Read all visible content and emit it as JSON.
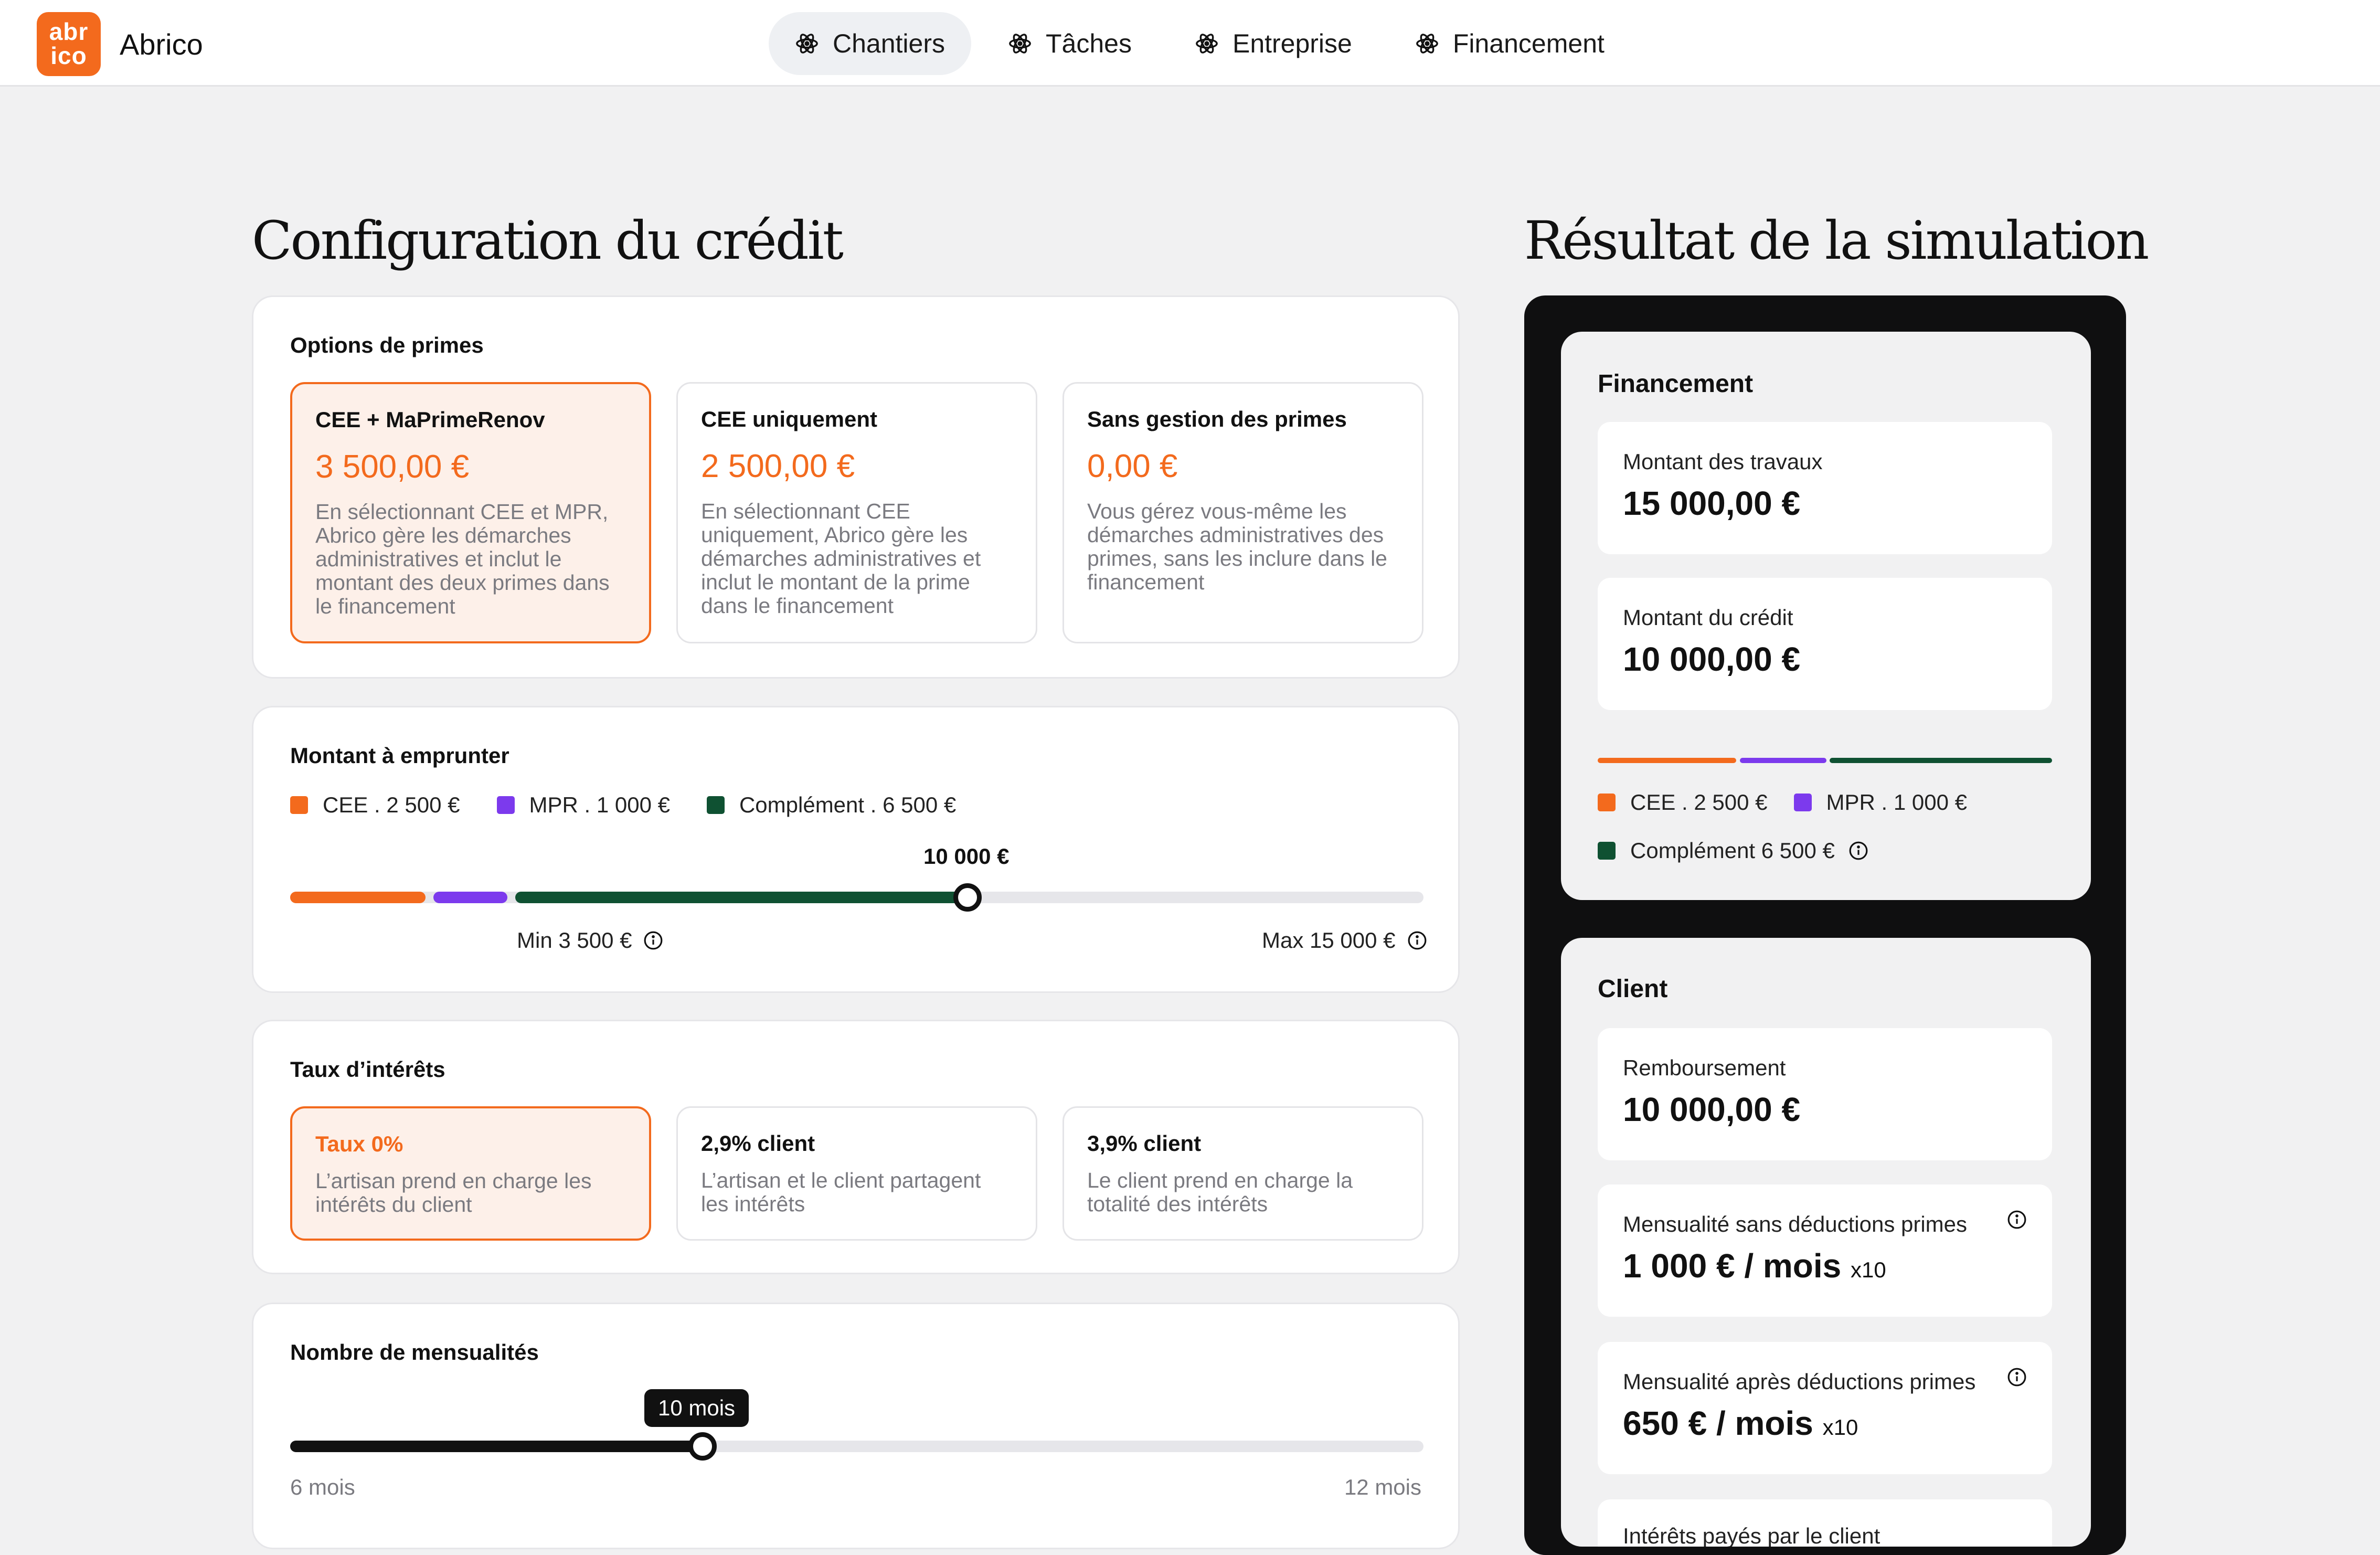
{
  "nav": {
    "logo_top": "abr",
    "logo_bottom": "ico",
    "app_name": "Abrico",
    "items": [
      {
        "label": "Chantiers",
        "icon": "atom-icon",
        "active": true
      },
      {
        "label": "Tâches",
        "icon": "atom-icon",
        "active": false
      },
      {
        "label": "Entreprise",
        "icon": "atom-icon",
        "active": false
      },
      {
        "label": "Financement",
        "icon": "atom-icon",
        "active": false
      }
    ]
  },
  "config": {
    "heading": "Configuration du crédit",
    "primes": {
      "title": "Options de primes",
      "options": [
        {
          "title": "CEE + MaPrimeRenov",
          "amount": "3 500,00 €",
          "desc": "En sélectionnant CEE et MPR, Abrico gère les démarches administratives et inclut le montant des deux primes dans le financement",
          "selected": true
        },
        {
          "title": "CEE uniquement",
          "amount": "2 500,00 €",
          "desc": "En sélectionnant CEE uniquement, Abrico gère les démarches administratives et inclut le montant de la prime dans le financement",
          "selected": false
        },
        {
          "title": "Sans gestion des primes",
          "amount": "0,00 €",
          "desc": "Vous gérez vous-même les démarches administratives des primes, sans les inclure dans le financement",
          "selected": false
        }
      ]
    },
    "montant": {
      "title": "Montant à emprunter",
      "legend": [
        {
          "label": "CEE . 2 500 €",
          "color": "#f36a1d"
        },
        {
          "label": "MPR . 1 000 €",
          "color": "#7c3aed"
        },
        {
          "label": "Complément . 6 500 €",
          "color": "#0f5132"
        }
      ],
      "value_label": "10 000 €",
      "value_fraction": 0.5844,
      "min_label": "Min 3 500 €",
      "max_label": "Max 15 000 €"
    },
    "taux": {
      "title": "Taux d’intérêts",
      "options": [
        {
          "title": "Taux 0%",
          "desc": "L’artisan prend en charge les intérêts du client",
          "selected": true
        },
        {
          "title": "2,9% client",
          "desc": "L’artisan et le client partagent les intérêts",
          "selected": false
        },
        {
          "title": "3,9% client",
          "desc": "Le client prend en charge la totalité des intérêts",
          "selected": false
        }
      ]
    },
    "mensualites": {
      "title": "Nombre de mensualités",
      "value_label": "10 mois",
      "value_fraction": 0.3617,
      "min_label": "6 mois",
      "max_label": "12 mois"
    }
  },
  "result": {
    "heading": "Résultat de la simulation",
    "financement": {
      "title": "Financement",
      "travaux_label": "Montant des travaux",
      "travaux_value": "15 000,00 €",
      "credit_label": "Montant du crédit",
      "credit_value": "10 000,00 €",
      "legend": [
        {
          "label": "CEE . 2 500 €",
          "color": "#f36a1d"
        },
        {
          "label": "MPR . 1 000 €",
          "color": "#7c3aed"
        },
        {
          "label": "Complément  6 500 €",
          "color": "#0f5132"
        }
      ]
    },
    "client": {
      "title": "Client",
      "remboursement_label": "Remboursement",
      "remboursement_value": "10 000,00 €",
      "sans_label": "Mensualité sans déductions primes",
      "sans_value": "1 000 € / mois",
      "sans_mult": "x10",
      "apres_label": "Mensualité après déductions primes",
      "apres_value": "650 € / mois",
      "apres_mult": "x10",
      "interets_label": "Intérêts payés par le client"
    }
  }
}
